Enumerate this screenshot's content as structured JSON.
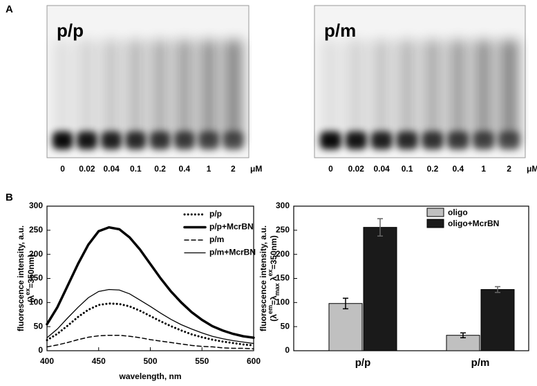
{
  "panel_labels": [
    "A",
    "B"
  ],
  "gels": [
    {
      "label": "p/p",
      "lanes": [
        "0",
        "0.02",
        "0.04",
        "0.1",
        "0.2",
        "0.4",
        "1",
        "2"
      ],
      "unit": "μM"
    },
    {
      "label": "p/m",
      "lanes": [
        "0",
        "0.02",
        "0.04",
        "0.1",
        "0.2",
        "0.4",
        "1",
        "2"
      ],
      "unit": "μM"
    }
  ],
  "chart_data": [
    {
      "type": "line",
      "x_label": "wavelength, nm",
      "y_label": [
        "fluorescence intensity, a.u.",
        "(λ",
        "ex",
        "=350nm)"
      ],
      "x": [
        400,
        410,
        420,
        430,
        440,
        450,
        460,
        470,
        480,
        490,
        500,
        510,
        520,
        530,
        540,
        550,
        560,
        570,
        580,
        590,
        600
      ],
      "xlim": [
        400,
        600
      ],
      "xticks": [
        400,
        450,
        500,
        550,
        600
      ],
      "ylim": [
        0,
        300
      ],
      "yticks": [
        0,
        50,
        100,
        150,
        200,
        250,
        300
      ],
      "legend": "top-right",
      "series": [
        {
          "name": "p/p",
          "color": "#000000",
          "style": "dotted",
          "width": 3,
          "values": [
            22,
            35,
            52,
            70,
            85,
            95,
            98,
            97,
            92,
            83,
            72,
            61,
            51,
            42,
            34,
            28,
            23,
            19,
            16,
            13,
            11
          ]
        },
        {
          "name": "p/p+McrBN",
          "color": "#000000",
          "style": "solid",
          "width": 3.5,
          "values": [
            55,
            90,
            135,
            180,
            220,
            248,
            256,
            252,
            235,
            210,
            180,
            150,
            123,
            100,
            80,
            64,
            51,
            42,
            35,
            30,
            27
          ]
        },
        {
          "name": "p/m",
          "color": "#000000",
          "style": "dashed",
          "width": 1.5,
          "values": [
            8,
            12,
            17,
            23,
            28,
            31,
            32,
            32,
            30,
            27,
            23,
            20,
            17,
            14,
            11,
            9,
            8,
            6,
            5,
            5,
            4
          ]
        },
        {
          "name": "p/m+McrBN",
          "color": "#000000",
          "style": "solid",
          "width": 1.3,
          "values": [
            27,
            45,
            68,
            90,
            110,
            123,
            127,
            126,
            118,
            105,
            92,
            78,
            65,
            54,
            45,
            37,
            30,
            25,
            21,
            18,
            15
          ]
        }
      ]
    },
    {
      "type": "bar",
      "y_label": [
        "fluorescence intensity, a.u.",
        "(λ",
        "em",
        "=λ",
        "max",
        " λ",
        "ex",
        "=350nm)"
      ],
      "categories": [
        "p/p",
        "p/m"
      ],
      "ylim": [
        0,
        300
      ],
      "yticks": [
        0,
        50,
        100,
        150,
        200,
        250,
        300
      ],
      "legend": "top-right",
      "series": [
        {
          "name": "oligo",
          "color": "#c0c0c0",
          "values": [
            98,
            32
          ],
          "errors": [
            11,
            5
          ]
        },
        {
          "name": "oligo+McrBN",
          "color": "#1a1a1a",
          "values": [
            256,
            127
          ],
          "errors": [
            18,
            6
          ]
        }
      ]
    }
  ]
}
